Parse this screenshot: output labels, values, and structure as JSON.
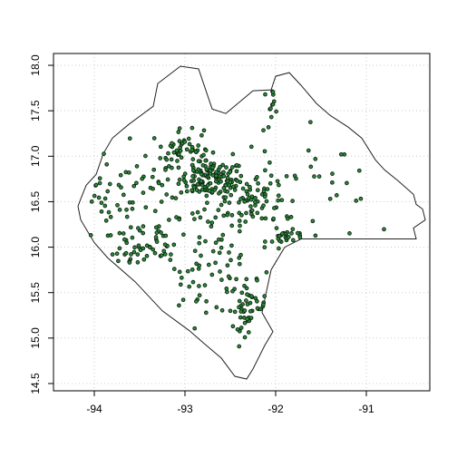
{
  "chart_data": {
    "type": "scatter",
    "title": "",
    "xlabel": "",
    "ylabel": "",
    "xlim": [
      -94.45,
      -90.3
    ],
    "ylim": [
      14.42,
      18.13
    ],
    "grid": true,
    "legend": "none",
    "x_ticks": [
      -94,
      -93,
      -92,
      -91
    ],
    "x_tick_labels": [
      "-94",
      "-93",
      "-92",
      "-91"
    ],
    "y_ticks": [
      14.5,
      15.0,
      15.5,
      16.0,
      16.5,
      17.0,
      17.5,
      18.0
    ],
    "y_tick_labels": [
      "14.5",
      "15.0",
      "15.5",
      "16.0",
      "16.5",
      "17.0",
      "17.5",
      "18.0"
    ],
    "colors": {
      "point_fill": "#2e8b3a",
      "point_edge": "#0b2410",
      "boundary": "#222222",
      "grid": "#cccccc",
      "frame": "#000000"
    },
    "boundary": [
      [
        -94.15,
        16.53
      ],
      [
        -94.09,
        16.68
      ],
      [
        -93.98,
        16.8
      ],
      [
        -93.9,
        17.03
      ],
      [
        -93.8,
        17.2
      ],
      [
        -93.62,
        17.35
      ],
      [
        -93.35,
        17.55
      ],
      [
        -93.3,
        17.8
      ],
      [
        -93.05,
        17.99
      ],
      [
        -92.85,
        17.96
      ],
      [
        -92.7,
        17.52
      ],
      [
        -92.55,
        17.47
      ],
      [
        -92.25,
        17.72
      ],
      [
        -92.05,
        17.73
      ],
      [
        -92.0,
        17.88
      ],
      [
        -91.85,
        17.92
      ],
      [
        -91.72,
        17.78
      ],
      [
        -91.55,
        17.58
      ],
      [
        -91.4,
        17.45
      ],
      [
        -91.2,
        17.32
      ],
      [
        -91.05,
        17.2
      ],
      [
        -90.9,
        16.96
      ],
      [
        -90.8,
        16.85
      ],
      [
        -90.65,
        16.73
      ],
      [
        -90.48,
        16.58
      ],
      [
        -90.45,
        16.47
      ],
      [
        -90.38,
        16.42
      ],
      [
        -90.35,
        16.3
      ],
      [
        -90.48,
        16.21
      ],
      [
        -90.45,
        16.09
      ],
      [
        -91.72,
        16.09
      ],
      [
        -91.9,
        16.0
      ],
      [
        -92.05,
        15.75
      ],
      [
        -92.1,
        15.52
      ],
      [
        -92.15,
        15.28
      ],
      [
        -92.03,
        15.07
      ],
      [
        -92.12,
        14.92
      ],
      [
        -92.25,
        14.66
      ],
      [
        -92.32,
        14.55
      ],
      [
        -92.45,
        14.58
      ],
      [
        -92.6,
        14.78
      ],
      [
        -92.8,
        14.95
      ],
      [
        -92.95,
        15.08
      ],
      [
        -93.25,
        15.3
      ],
      [
        -93.55,
        15.62
      ],
      [
        -93.85,
        15.88
      ],
      [
        -94.0,
        16.05
      ],
      [
        -94.15,
        16.3
      ],
      [
        -94.18,
        16.45
      ],
      [
        -94.15,
        16.53
      ]
    ],
    "clusters": [
      {
        "center": [
          -92.7,
          16.75
        ],
        "spread": [
          0.18,
          0.1
        ],
        "count": 110
      },
      {
        "center": [
          -92.35,
          16.55
        ],
        "spread": [
          0.2,
          0.16
        ],
        "count": 55
      },
      {
        "center": [
          -93.05,
          17.08
        ],
        "spread": [
          0.16,
          0.1
        ],
        "count": 40
      },
      {
        "center": [
          -92.85,
          16.85
        ],
        "spread": [
          0.35,
          0.25
        ],
        "count": 40
      },
      {
        "center": [
          -92.3,
          15.35
        ],
        "spread": [
          0.1,
          0.13
        ],
        "count": 45
      },
      {
        "center": [
          -92.55,
          15.65
        ],
        "spread": [
          0.25,
          0.3
        ],
        "count": 35
      },
      {
        "center": [
          -93.5,
          16.0
        ],
        "spread": [
          0.25,
          0.15
        ],
        "count": 40
      },
      {
        "center": [
          -93.85,
          16.5
        ],
        "spread": [
          0.2,
          0.25
        ],
        "count": 30
      },
      {
        "center": [
          -92.0,
          16.4
        ],
        "spread": [
          0.15,
          0.25
        ],
        "count": 25
      },
      {
        "center": [
          -91.85,
          16.1
        ],
        "spread": [
          0.12,
          0.04
        ],
        "count": 25
      },
      {
        "center": [
          -92.85,
          15.7
        ],
        "spread": [
          0.2,
          0.2
        ],
        "count": 25
      },
      {
        "center": [
          -93.25,
          16.55
        ],
        "spread": [
          0.3,
          0.3
        ],
        "count": 30
      },
      {
        "center": [
          -92.05,
          17.6
        ],
        "spread": [
          0.05,
          0.07
        ],
        "count": 12
      },
      {
        "center": [
          -91.4,
          16.7
        ],
        "spread": [
          0.25,
          0.3
        ],
        "count": 20
      },
      {
        "center": [
          -93.1,
          16.2
        ],
        "spread": [
          0.3,
          0.2
        ],
        "count": 25
      }
    ]
  }
}
